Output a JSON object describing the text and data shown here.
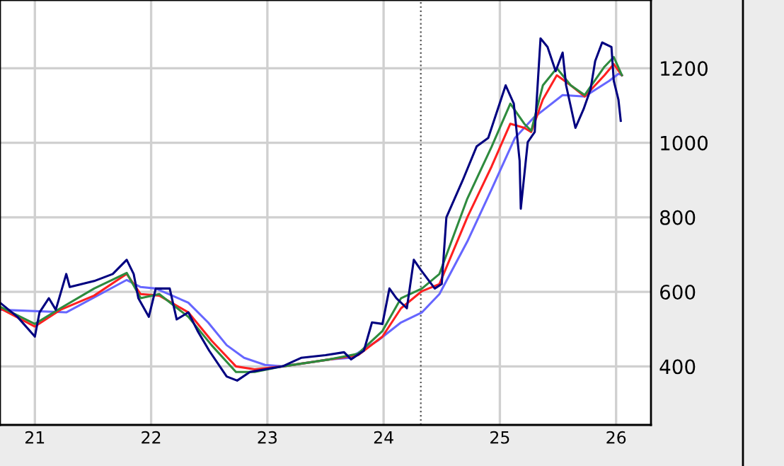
{
  "chart_data": {
    "type": "line",
    "xlim": [
      20.7,
      26.3
    ],
    "ylim": [
      243,
      1383
    ],
    "xticks": [
      21,
      22,
      23,
      24,
      25,
      26
    ],
    "yticks": [
      400,
      600,
      800,
      1000,
      1200
    ],
    "grid": true,
    "line_style": "solid",
    "marker": "none",
    "ref_lines": [
      {
        "axis": "x",
        "value": 24.32,
        "label": null,
        "color": "#555555",
        "line_style": "dotted"
      }
    ],
    "series": [
      {
        "color": "#6666ff",
        "x": [
          20.7,
          21.27,
          21.79,
          21.91,
          22.04,
          22.32,
          22.49,
          22.65,
          22.8,
          22.98,
          23.13,
          23.54,
          23.71,
          23.95,
          24.15,
          24.33,
          24.48,
          24.72,
          24.93,
          25.13,
          25.29,
          25.54,
          25.73,
          25.94,
          26.02,
          26.05
        ],
        "values": [
          552,
          545,
          632,
          613,
          609,
          571,
          518,
          457,
          423,
          404,
          400,
          419,
          423,
          469,
          518,
          545,
          594,
          735,
          876,
          1013,
          1067,
          1128,
          1124,
          1166,
          1185,
          1181
        ]
      },
      {
        "color": "#ff2020",
        "x": [
          20.7,
          21.0,
          21.22,
          21.51,
          21.79,
          21.91,
          22.07,
          22.32,
          22.52,
          22.73,
          22.89,
          23.13,
          23.54,
          23.78,
          23.99,
          24.15,
          24.33,
          24.48,
          24.72,
          24.93,
          25.09,
          25.21,
          25.27,
          25.37,
          25.49,
          25.61,
          25.73,
          25.9,
          25.98,
          26.05
        ],
        "values": [
          556,
          507,
          552,
          590,
          648,
          594,
          590,
          545,
          469,
          400,
          392,
          400,
          419,
          430,
          480,
          556,
          602,
          621,
          800,
          937,
          1051,
          1040,
          1029,
          1116,
          1181,
          1154,
          1124,
          1181,
          1211,
          1181
        ]
      },
      {
        "color": "#2e8b3e",
        "x": [
          20.7,
          21.0,
          21.22,
          21.51,
          21.79,
          21.91,
          22.07,
          22.32,
          22.52,
          22.73,
          22.89,
          23.13,
          23.54,
          23.78,
          23.99,
          24.15,
          24.33,
          24.48,
          24.72,
          24.93,
          25.09,
          25.21,
          25.27,
          25.37,
          25.49,
          25.61,
          25.73,
          25.9,
          25.98,
          26.05
        ],
        "values": [
          560,
          514,
          556,
          609,
          651,
          583,
          594,
          533,
          457,
          385,
          385,
          400,
          419,
          434,
          495,
          583,
          609,
          648,
          850,
          990,
          1105,
          1051,
          1032,
          1154,
          1200,
          1154,
          1128,
          1204,
          1230,
          1181
        ]
      },
      {
        "color": "#000080",
        "x": [
          20.7,
          20.85,
          21.0,
          21.04,
          21.12,
          21.18,
          21.27,
          21.3,
          21.51,
          21.67,
          21.79,
          21.85,
          21.89,
          21.98,
          22.04,
          22.16,
          22.22,
          22.32,
          22.4,
          22.5,
          22.65,
          22.74,
          22.85,
          22.98,
          23.13,
          23.29,
          23.5,
          23.66,
          23.72,
          23.83,
          23.9,
          23.99,
          24.05,
          24.11,
          24.2,
          24.26,
          24.32,
          24.44,
          24.5,
          24.54,
          24.68,
          24.8,
          24.9,
          25.05,
          25.12,
          25.17,
          25.18,
          25.24,
          25.3,
          25.35,
          25.41,
          25.48,
          25.54,
          25.57,
          25.65,
          25.72,
          25.78,
          25.82,
          25.88,
          25.96,
          25.98,
          26.02,
          26.04
        ],
        "values": [
          571,
          533,
          480,
          545,
          583,
          552,
          648,
          613,
          629,
          648,
          686,
          648,
          583,
          533,
          609,
          609,
          526,
          545,
          495,
          442,
          373,
          362,
          385,
          392,
          400,
          423,
          430,
          438,
          419,
          442,
          518,
          514,
          609,
          583,
          556,
          686,
          659,
          609,
          621,
          800,
          899,
          990,
          1013,
          1154,
          1105,
          952,
          823,
          1002,
          1029,
          1280,
          1257,
          1192,
          1242,
          1154,
          1040,
          1090,
          1143,
          1219,
          1269,
          1257,
          1166,
          1116,
          1059
        ]
      }
    ]
  }
}
